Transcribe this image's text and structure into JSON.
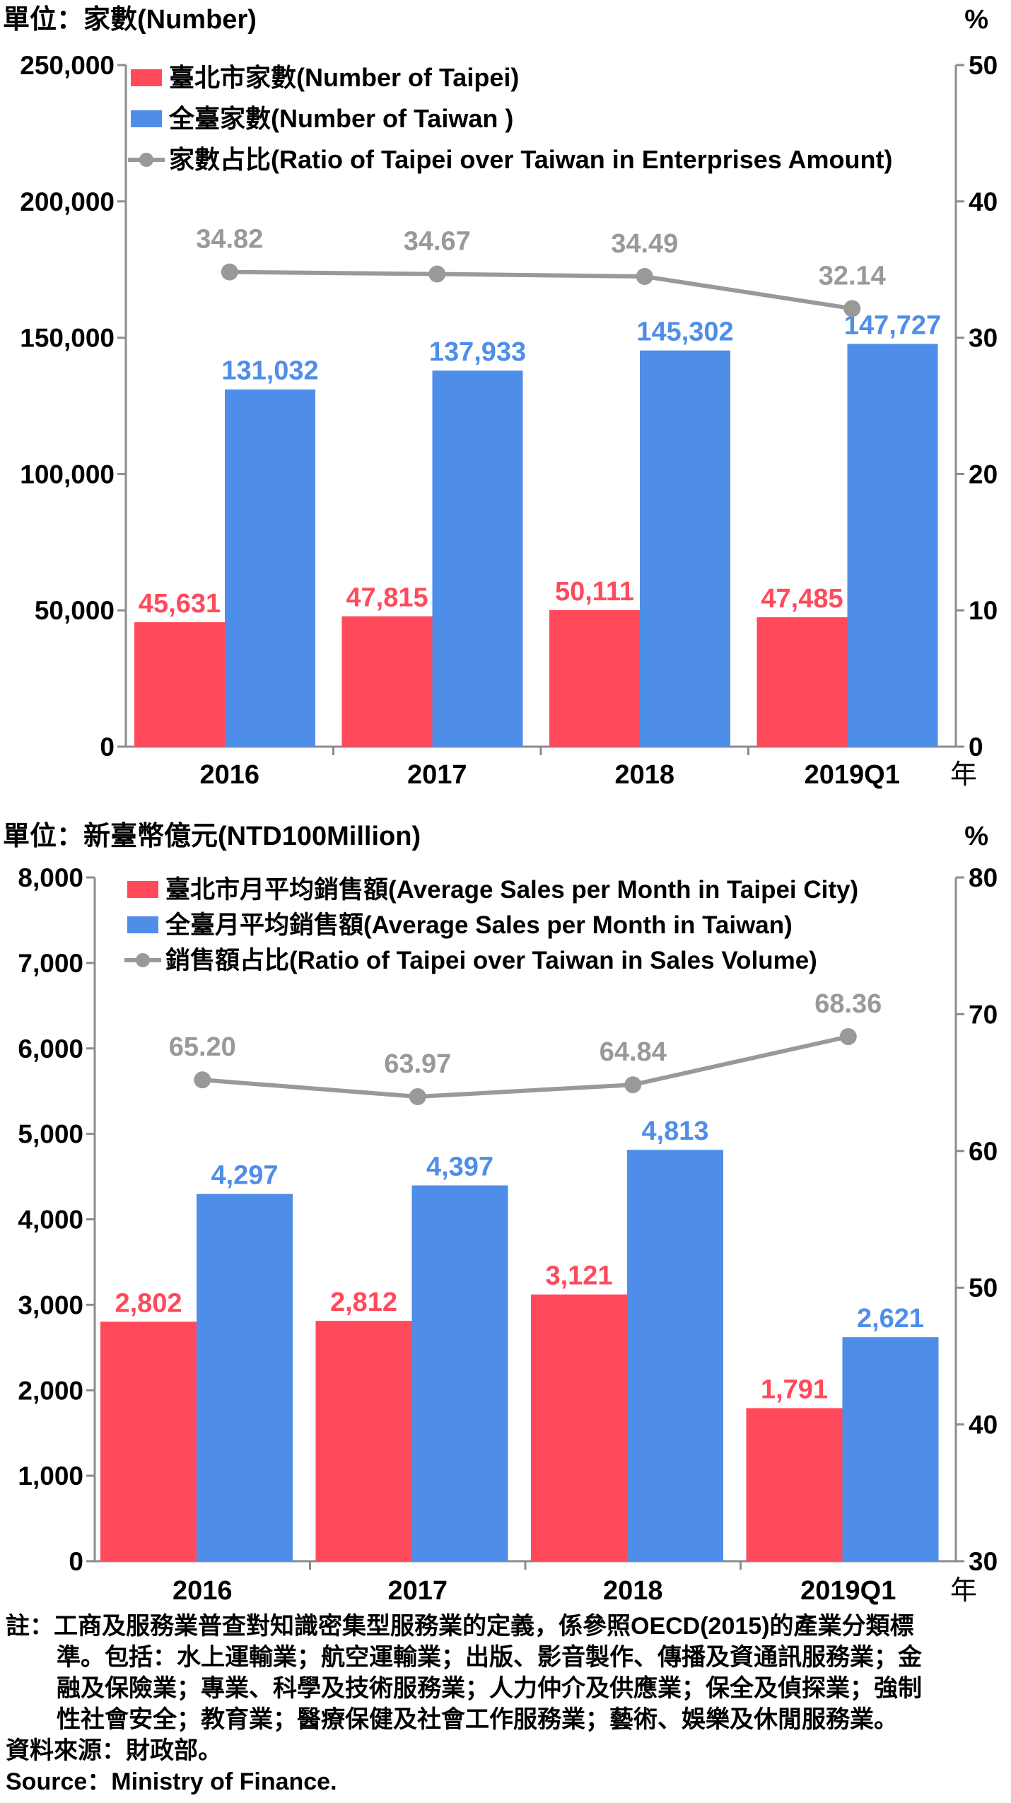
{
  "colors": {
    "taipei": "#ff4a5c",
    "taiwan": "#4f8ee8",
    "ratio": "#999999",
    "axis": "#8c8c8c"
  },
  "chart_data": [
    {
      "type": "bar",
      "unit_label_left": "單位：家數(Number)",
      "unit_label_right": "%",
      "year_label": "年",
      "categories": [
        "2016",
        "2017",
        "2018",
        "2019Q1"
      ],
      "series": [
        {
          "name": "臺北市家數(Number of  Taipei)",
          "values": [
            45631,
            47815,
            50111,
            47485
          ],
          "value_labels": [
            "45,631",
            "47,815",
            "50,111",
            "47,485"
          ]
        },
        {
          "name": "全臺家數(Number of Taiwan )",
          "values": [
            131032,
            137933,
            145302,
            147727
          ],
          "value_labels": [
            "131,032",
            "137,933",
            "145,302",
            "147,727"
          ]
        }
      ],
      "line_series": {
        "name": "家數占比(Ratio of Taipei over Taiwan in Enterprises Amount)",
        "values": [
          34.82,
          34.67,
          34.49,
          32.14
        ],
        "value_labels": [
          "34.82",
          "34.67",
          "34.49",
          "32.14"
        ]
      },
      "ylim": [
        0,
        250000
      ],
      "y_ticks": [
        "0",
        "50,000",
        "100,000",
        "150,000",
        "200,000",
        "250,000"
      ],
      "y2lim": [
        0,
        50
      ],
      "y2_ticks": [
        "0",
        "10",
        "20",
        "30",
        "40",
        "50"
      ],
      "legend": "top-left",
      "grid": false
    },
    {
      "type": "bar",
      "unit_label_left": "單位：新臺幣億元(NTD100Million)",
      "unit_label_right": "%",
      "year_label": "年",
      "categories": [
        "2016",
        "2017",
        "2018",
        "2019Q1"
      ],
      "series": [
        {
          "name": "臺北市月平均銷售額(Average Sales per Month in Taipei City)",
          "values": [
            2802,
            2812,
            3121,
            1791
          ],
          "value_labels": [
            "2,802",
            "2,812",
            "3,121",
            "1,791"
          ]
        },
        {
          "name": "全臺月平均銷售額(Average Sales per Month in Taiwan)",
          "values": [
            4297,
            4397,
            4813,
            2621
          ],
          "value_labels": [
            "4,297",
            "4,397",
            "4,813",
            "2,621"
          ]
        }
      ],
      "line_series": {
        "name": "銷售額占比(Ratio of Taipei over Taiwan in Sales Volume)",
        "values": [
          65.2,
          63.97,
          64.84,
          68.36
        ],
        "value_labels": [
          "65.20",
          "63.97",
          "64.84",
          "68.36"
        ]
      },
      "ylim": [
        0,
        8000
      ],
      "y_ticks": [
        "0",
        "1,000",
        "2,000",
        "3,000",
        "4,000",
        "5,000",
        "6,000",
        "7,000",
        "8,000"
      ],
      "y2lim": [
        30,
        80
      ],
      "y2_ticks": [
        "30",
        "40",
        "50",
        "60",
        "70",
        "80"
      ],
      "legend": "top-left",
      "grid": false
    }
  ],
  "notes": {
    "line1": "註：工商及服務業普查對知識密集型服務業的定義，係參照OECD(2015)的產業分類標",
    "line2": "準。包括：水上運輸業；航空運輸業；出版、影音製作、傳播及資通訊服務業；金",
    "line3": "融及保險業；專業、科學及技術服務業；人力仲介及供應業；保全及偵探業；強制",
    "line4": "性社會安全；教育業；醫療保健及社會工作服務業；藝術、娛樂及休閒服務業。",
    "line5": "資料來源：財政部。",
    "line6": "Source：Ministry of Finance."
  }
}
